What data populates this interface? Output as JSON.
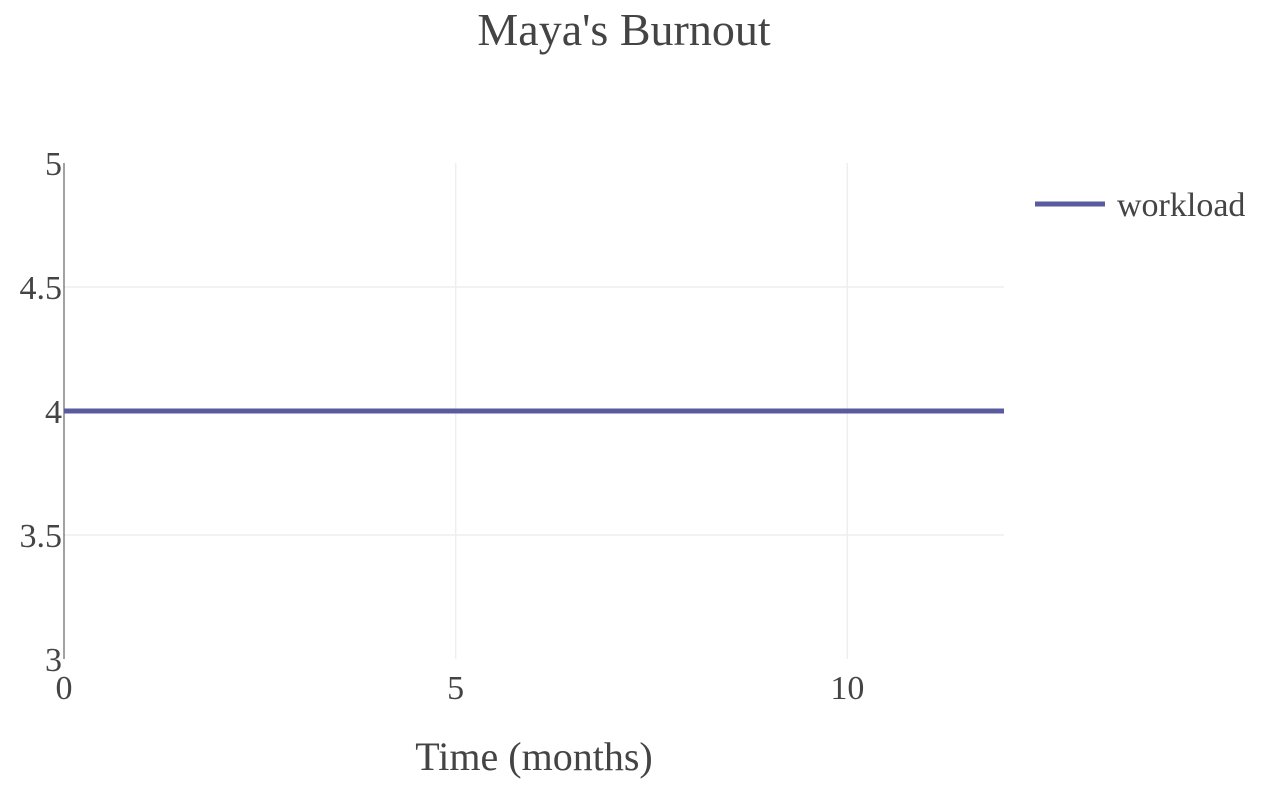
{
  "chart_data": {
    "type": "line",
    "title": "Maya's Burnout",
    "xlabel": "Time (months)",
    "ylabel": "",
    "xlim": [
      0,
      12
    ],
    "ylim": [
      3,
      5
    ],
    "x_ticks": [
      0,
      5,
      10
    ],
    "y_ticks": [
      3,
      3.5,
      4,
      4.5,
      5
    ],
    "x_tick_labels": [
      "0",
      "5",
      "10"
    ],
    "y_tick_labels": [
      "3",
      "3.5",
      "4",
      "4.5",
      "5"
    ],
    "grid": true,
    "legend_position": "top-right",
    "series": [
      {
        "name": "workload",
        "color": "#5a5a9e",
        "x": [
          0,
          12
        ],
        "y": [
          4,
          4
        ]
      }
    ]
  }
}
